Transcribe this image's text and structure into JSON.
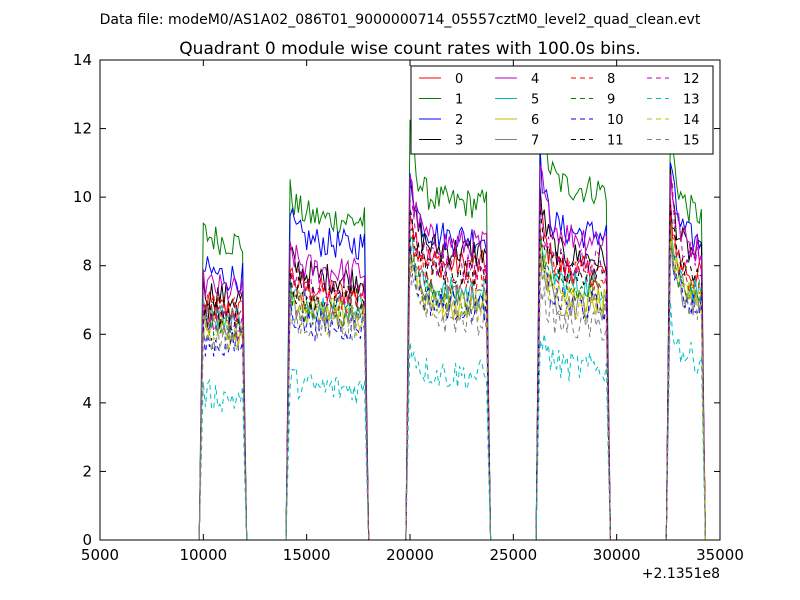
{
  "chart_data": {
    "type": "line",
    "suptitle": "Data file: modeM0/AS1A02_086T01_9000000714_05557cztM0_level2_quad_clean.evt",
    "title": "Quadrant 0 module wise count rates with 100.0s bins.",
    "xlabel": "",
    "ylabel": "",
    "x_offset_label": "+2.1351e8",
    "xlim": [
      5000,
      35000
    ],
    "ylim": [
      0,
      14
    ],
    "xticks": [
      5000,
      10000,
      15000,
      20000,
      25000,
      30000,
      35000
    ],
    "xtick_labels": [
      "5000",
      "10000",
      "15000",
      "20000",
      "25000",
      "30000",
      "35000"
    ],
    "yticks": [
      0,
      2,
      4,
      6,
      8,
      10,
      12,
      14
    ],
    "ytick_labels": [
      "0",
      "2",
      "4",
      "6",
      "8",
      "10",
      "12",
      "14"
    ],
    "grid": false,
    "legend_position": "top-right",
    "legend_columns": 4,
    "segments": [
      {
        "start": 10000,
        "end": 12000,
        "spike": 1.0
      },
      {
        "start": 14200,
        "end": 17900,
        "spike": 1.05
      },
      {
        "start": 20000,
        "end": 23800,
        "spike": 1.2
      },
      {
        "start": 26300,
        "end": 29600,
        "spike": 1.2
      },
      {
        "start": 32600,
        "end": 34200,
        "spike": 1.25
      }
    ],
    "series": [
      {
        "name": "0",
        "color": "#ff0000",
        "dashed": false,
        "levels": [
          6.6,
          7.2,
          8.0,
          7.8,
          7.6
        ]
      },
      {
        "name": "1",
        "color": "#008000",
        "dashed": false,
        "levels": [
          8.6,
          9.3,
          9.8,
          10.2,
          9.4
        ]
      },
      {
        "name": "2",
        "color": "#0000ff",
        "dashed": false,
        "levels": [
          7.6,
          8.6,
          8.8,
          8.9,
          8.6
        ]
      },
      {
        "name": "3",
        "color": "#000000",
        "dashed": false,
        "levels": [
          7.0,
          7.6,
          8.4,
          8.2,
          8.2
        ]
      },
      {
        "name": "4",
        "color": "#bf00bf",
        "dashed": false,
        "levels": [
          7.2,
          7.8,
          8.6,
          8.8,
          8.4
        ]
      },
      {
        "name": "5",
        "color": "#00bfbf",
        "dashed": false,
        "levels": [
          6.4,
          6.8,
          7.2,
          7.4,
          7.2
        ]
      },
      {
        "name": "6",
        "color": "#bfbf00",
        "dashed": false,
        "levels": [
          6.0,
          6.6,
          6.8,
          7.0,
          7.0
        ]
      },
      {
        "name": "7",
        "color": "#808080",
        "dashed": false,
        "levels": [
          6.3,
          6.5,
          7.0,
          6.8,
          6.8
        ]
      },
      {
        "name": "8",
        "color": "#ff0000",
        "dashed": true,
        "levels": [
          6.6,
          7.0,
          7.6,
          7.6,
          7.4
        ]
      },
      {
        "name": "9",
        "color": "#008000",
        "dashed": true,
        "levels": [
          6.2,
          6.6,
          7.0,
          7.2,
          7.0
        ]
      },
      {
        "name": "10",
        "color": "#0000ff",
        "dashed": true,
        "levels": [
          5.6,
          6.2,
          6.8,
          6.8,
          6.8
        ]
      },
      {
        "name": "11",
        "color": "#000000",
        "dashed": true,
        "levels": [
          6.4,
          7.0,
          7.8,
          7.8,
          7.8
        ]
      },
      {
        "name": "12",
        "color": "#bf00bf",
        "dashed": true,
        "levels": [
          6.2,
          7.2,
          8.0,
          8.0,
          8.2
        ]
      },
      {
        "name": "13",
        "color": "#00bfbf",
        "dashed": true,
        "levels": [
          4.1,
          4.4,
          4.8,
          5.0,
          5.2
        ]
      },
      {
        "name": "14",
        "color": "#bfbf00",
        "dashed": true,
        "levels": [
          5.8,
          6.4,
          6.8,
          6.8,
          7.0
        ]
      },
      {
        "name": "15",
        "color": "#808080",
        "dashed": true,
        "levels": [
          5.8,
          6.2,
          6.4,
          6.2,
          6.6
        ]
      }
    ]
  }
}
